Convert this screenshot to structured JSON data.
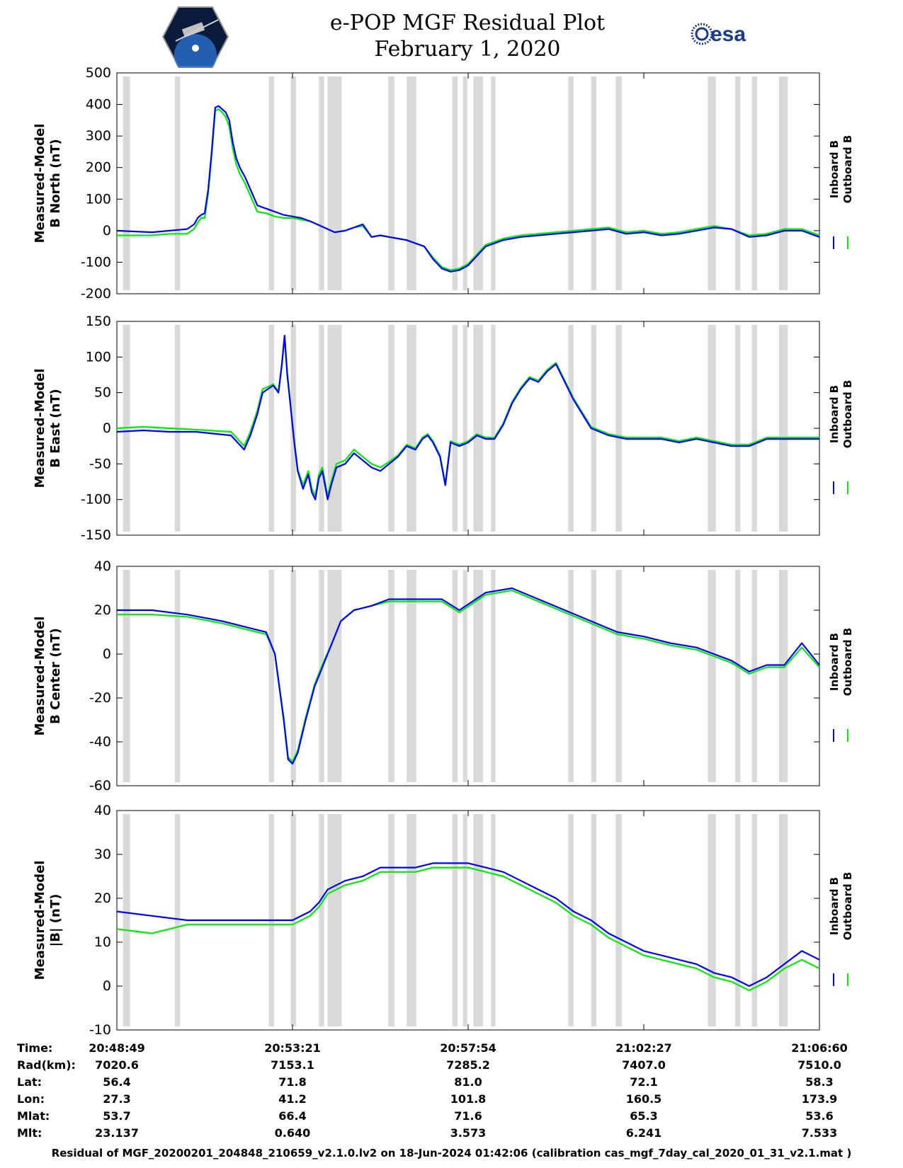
{
  "header": {
    "title": "e-POP MGF Residual Plot",
    "subtitle": "February 1, 2020",
    "right_logo_text": "esa"
  },
  "colors": {
    "inboard": "#0000ff",
    "outboard": "#00ee00",
    "gap": "#d9d9d9"
  },
  "chart_data": [
    {
      "type": "line",
      "ylabel": [
        "Measured-Model",
        "B North (nT)"
      ],
      "ylim": [
        -200,
        500
      ],
      "yticks": [
        -200,
        -100,
        0,
        100,
        200,
        300,
        400,
        500
      ],
      "legend_position": "right",
      "series": [
        {
          "name": "Inboard B",
          "color": "#0000ff",
          "x": [
            0,
            4,
            6,
            8,
            8.8,
            9.2,
            9.6,
            10,
            10.4,
            10.8,
            11.2,
            11.6,
            12,
            12.4,
            12.8,
            13.2,
            13.6,
            14,
            14.6,
            16,
            17,
            18,
            19,
            20,
            21,
            22,
            22.8,
            23.6,
            24.4,
            24.8,
            26,
            27,
            28,
            29,
            30,
            31,
            32,
            33,
            34,
            35,
            36,
            37,
            38,
            39,
            40,
            42,
            44,
            46,
            48,
            50,
            52,
            54,
            56,
            58,
            60,
            62,
            64,
            66,
            68,
            70,
            72,
            74,
            76,
            78,
            80
          ],
          "y": [
            0,
            -5,
            0,
            5,
            20,
            40,
            50,
            55,
            130,
            250,
            390,
            395,
            385,
            375,
            350,
            280,
            230,
            200,
            170,
            80,
            70,
            60,
            50,
            45,
            40,
            30,
            20,
            10,
            0,
            -5,
            0,
            10,
            20,
            -20,
            -15,
            -20,
            -25,
            -30,
            -40,
            -50,
            -90,
            -120,
            -130,
            -125,
            -110,
            -50,
            -30,
            -20,
            -15,
            -10,
            -5,
            0,
            5,
            -10,
            -5,
            -15,
            -10,
            0,
            10,
            5,
            -20,
            -15,
            0,
            0,
            -20
          ]
        },
        {
          "name": "Outboard B",
          "color": "#00ee00",
          "x": [
            0,
            4,
            6,
            8,
            8.8,
            9.2,
            9.6,
            10,
            10.4,
            10.8,
            11.2,
            11.6,
            12,
            12.4,
            12.8,
            13.2,
            13.6,
            14,
            14.6,
            16,
            17,
            18,
            19,
            20,
            21,
            22,
            22.8,
            23.6,
            24.4,
            24.8,
            26,
            27,
            28,
            29,
            30,
            31,
            32,
            33,
            34,
            35,
            36,
            37,
            38,
            39,
            40,
            42,
            44,
            46,
            48,
            50,
            52,
            54,
            56,
            58,
            60,
            62,
            64,
            66,
            68,
            70,
            72,
            74,
            76,
            78,
            80
          ],
          "y": [
            -15,
            -15,
            -10,
            -10,
            5,
            25,
            40,
            40,
            120,
            240,
            380,
            385,
            375,
            360,
            330,
            260,
            210,
            180,
            150,
            60,
            55,
            45,
            40,
            40,
            35,
            30,
            20,
            10,
            0,
            -5,
            0,
            10,
            15,
            -20,
            -15,
            -20,
            -25,
            -30,
            -40,
            -50,
            -85,
            -115,
            -125,
            -120,
            -105,
            -45,
            -25,
            -15,
            -10,
            -5,
            0,
            5,
            10,
            -5,
            0,
            -10,
            -5,
            5,
            15,
            5,
            -15,
            -10,
            5,
            5,
            -15
          ]
        }
      ]
    },
    {
      "type": "line",
      "ylabel": [
        "Measured-Model",
        "B East (nT)"
      ],
      "ylim": [
        -150,
        150
      ],
      "yticks": [
        -150,
        -100,
        -50,
        0,
        50,
        100,
        150
      ],
      "legend_position": "right",
      "series": [
        {
          "name": "Inboard B",
          "color": "#0000ff",
          "x": [
            0,
            3,
            6,
            9,
            13,
            14.5,
            15.2,
            16,
            16.6,
            17.2,
            17.8,
            18.4,
            18.8,
            19.1,
            19.4,
            19.7,
            20.2,
            20.6,
            21.2,
            21.8,
            22.2,
            22.6,
            23,
            23.4,
            24,
            24.4,
            25,
            26,
            27,
            28,
            29,
            30,
            31,
            32,
            33,
            34,
            34.8,
            35.4,
            36,
            36.8,
            37.4,
            38,
            39,
            40,
            41,
            42,
            43,
            44,
            45,
            46,
            47,
            48,
            49,
            50,
            52,
            54,
            56,
            58,
            60,
            62,
            64,
            66,
            68,
            70,
            72,
            74,
            76,
            78,
            80
          ],
          "y": [
            -5,
            -3,
            -5,
            -5,
            -10,
            -30,
            -10,
            20,
            50,
            55,
            60,
            50,
            90,
            130,
            75,
            40,
            -20,
            -60,
            -85,
            -65,
            -90,
            -100,
            -70,
            -60,
            -100,
            -80,
            -55,
            -50,
            -35,
            -45,
            -55,
            -60,
            -50,
            -40,
            -25,
            -30,
            -15,
            -10,
            -20,
            -40,
            -80,
            -20,
            -25,
            -20,
            -10,
            -15,
            -15,
            5,
            35,
            55,
            70,
            65,
            80,
            90,
            40,
            0,
            -10,
            -15,
            -15,
            -15,
            -20,
            -15,
            -20,
            -25,
            -25,
            -15,
            -15,
            -15,
            -15
          ]
        },
        {
          "name": "Outboard B",
          "color": "#00ee00",
          "x": [
            0,
            3,
            6,
            9,
            13,
            14.5,
            15.2,
            16,
            16.6,
            17.2,
            17.8,
            18.4,
            18.8,
            19.1,
            19.4,
            19.7,
            20.2,
            20.6,
            21.2,
            21.8,
            22.2,
            22.6,
            23,
            23.4,
            24,
            24.4,
            25,
            26,
            27,
            28,
            29,
            30,
            31,
            32,
            33,
            34,
            34.8,
            35.4,
            36,
            36.8,
            37.4,
            38,
            39,
            40,
            41,
            42,
            43,
            44,
            45,
            46,
            47,
            48,
            49,
            50,
            52,
            54,
            56,
            58,
            60,
            62,
            64,
            66,
            68,
            70,
            72,
            74,
            76,
            78,
            80
          ],
          "y": [
            0,
            2,
            0,
            -2,
            -5,
            -25,
            -5,
            25,
            55,
            58,
            62,
            52,
            92,
            130,
            78,
            42,
            -18,
            -58,
            -80,
            -60,
            -85,
            -95,
            -65,
            -55,
            -95,
            -75,
            -50,
            -45,
            -30,
            -40,
            -50,
            -55,
            -47,
            -38,
            -23,
            -28,
            -13,
            -8,
            -18,
            -38,
            -78,
            -18,
            -23,
            -18,
            -8,
            -13,
            -13,
            7,
            37,
            57,
            72,
            67,
            82,
            92,
            42,
            2,
            -8,
            -13,
            -13,
            -13,
            -18,
            -13,
            -18,
            -23,
            -23,
            -13,
            -13,
            -13,
            -13
          ]
        }
      ]
    },
    {
      "type": "line",
      "ylabel": [
        "Measured-Model",
        "B Center (nT)"
      ],
      "ylim": [
        -60,
        40
      ],
      "yticks": [
        -60,
        -40,
        -20,
        0,
        20,
        40
      ],
      "legend_position": "right",
      "series": [
        {
          "name": "Inboard B",
          "color": "#0000ff",
          "x": [
            0,
            4,
            8,
            12,
            15,
            17,
            18,
            19,
            19.5,
            20,
            20.6,
            21.5,
            22.5,
            23.5,
            24.5,
            25.5,
            27,
            29,
            31,
            33,
            35,
            37,
            39,
            42,
            45,
            48,
            51,
            54,
            57,
            60,
            63,
            66,
            68,
            70,
            72,
            74,
            76,
            78,
            80
          ],
          "y": [
            20,
            20,
            18,
            15,
            12,
            10,
            0,
            -30,
            -48,
            -50,
            -45,
            -30,
            -15,
            -5,
            5,
            15,
            20,
            22,
            25,
            25,
            25,
            25,
            20,
            28,
            30,
            25,
            20,
            15,
            10,
            8,
            5,
            3,
            0,
            -3,
            -8,
            -5,
            -5,
            5,
            -5
          ]
        },
        {
          "name": "Outboard B",
          "color": "#00ee00",
          "x": [
            0,
            4,
            8,
            12,
            15,
            17,
            18,
            19,
            19.5,
            20,
            20.6,
            21.5,
            22.5,
            23.5,
            24.5,
            25.5,
            27,
            29,
            31,
            33,
            35,
            37,
            39,
            42,
            45,
            48,
            51,
            54,
            57,
            60,
            63,
            66,
            68,
            70,
            72,
            74,
            76,
            78,
            80
          ],
          "y": [
            18,
            18,
            17,
            14,
            11,
            9,
            0,
            -29,
            -47,
            -49,
            -44,
            -29,
            -14,
            -4,
            5,
            15,
            20,
            22,
            24,
            24,
            24,
            24,
            19,
            27,
            29,
            24,
            19,
            14,
            9,
            7,
            4,
            2,
            -1,
            -4,
            -9,
            -6,
            -6,
            3,
            -6
          ]
        }
      ]
    },
    {
      "type": "line",
      "ylabel": [
        "Measured-Model",
        "|B| (nT)"
      ],
      "ylim": [
        -10,
        40
      ],
      "yticks": [
        -10,
        0,
        10,
        20,
        30,
        40
      ],
      "legend_position": "right",
      "series": [
        {
          "name": "Inboard B",
          "color": "#0000ff",
          "x": [
            0,
            4,
            8,
            12,
            16,
            18,
            20,
            22,
            23,
            24,
            26,
            28,
            30,
            32,
            34,
            36,
            38,
            40,
            42,
            44,
            46,
            48,
            50,
            52,
            54,
            56,
            58,
            60,
            62,
            64,
            66,
            68,
            70,
            72,
            74,
            76,
            78,
            80
          ],
          "y": [
            17,
            16,
            15,
            15,
            15,
            15,
            15,
            17,
            19,
            22,
            24,
            25,
            27,
            27,
            27,
            28,
            28,
            28,
            27,
            26,
            24,
            22,
            20,
            17,
            15,
            12,
            10,
            8,
            7,
            6,
            5,
            3,
            2,
            0,
            2,
            5,
            8,
            6
          ]
        },
        {
          "name": "Outboard B",
          "color": "#00ee00",
          "x": [
            0,
            4,
            8,
            12,
            16,
            18,
            20,
            22,
            23,
            24,
            26,
            28,
            30,
            32,
            34,
            36,
            38,
            40,
            42,
            44,
            46,
            48,
            50,
            52,
            54,
            56,
            58,
            60,
            62,
            64,
            66,
            68,
            70,
            72,
            74,
            76,
            78,
            80
          ],
          "y": [
            13,
            12,
            14,
            14,
            14,
            14,
            14,
            16,
            18,
            21,
            23,
            24,
            26,
            26,
            26,
            27,
            27,
            27,
            26,
            25,
            23,
            21,
            19,
            16,
            14,
            11,
            9,
            7,
            6,
            5,
            4,
            2,
            1,
            -1,
            1,
            4,
            6,
            4
          ]
        }
      ]
    }
  ],
  "shared_x": {
    "range": [
      0,
      80
    ],
    "tick_positions": [
      0,
      20,
      40,
      60,
      80
    ],
    "gap_intervals": [
      [
        0.7,
        1.5
      ],
      [
        6.6,
        7.2
      ],
      [
        17.3,
        17.9
      ],
      [
        19.8,
        20.4
      ],
      [
        23.0,
        23.6
      ],
      [
        24.0,
        25.6
      ],
      [
        30.9,
        31.6
      ],
      [
        33.0,
        34.1
      ],
      [
        38.2,
        38.8
      ],
      [
        39.4,
        39.9
      ],
      [
        40.6,
        41.7
      ],
      [
        42.6,
        43.1
      ],
      [
        51.4,
        52.0
      ],
      [
        54.0,
        54.6
      ],
      [
        56.8,
        57.5
      ],
      [
        67.3,
        68.2
      ],
      [
        70.4,
        71.0
      ],
      [
        72.3,
        72.9
      ],
      [
        75.4,
        76.4
      ]
    ]
  },
  "ephemeris": {
    "labels": [
      "Time:",
      "Rad(km):",
      "Lat:",
      "Lon:",
      "Mlat:",
      "Mlt:"
    ],
    "columns": [
      [
        "20:48:49",
        "7020.6",
        "56.4",
        "27.3",
        "53.7",
        "23.137"
      ],
      [
        "20:53:21",
        "7153.1",
        "71.8",
        "41.2",
        "66.4",
        "0.640"
      ],
      [
        "20:57:54",
        "7285.2",
        "81.0",
        "101.8",
        "71.6",
        "3.573"
      ],
      [
        "21:02:27",
        "7407.0",
        "72.1",
        "160.5",
        "65.3",
        "6.241"
      ],
      [
        "21:06:60",
        "7510.0",
        "58.3",
        "173.9",
        "53.6",
        "7.533"
      ]
    ]
  },
  "footer": {
    "text": "Residual of MGF_20200201_204848_210659_v2.1.0.lv2 on 18-Jun-2024 01:42:06 (calibration cas_mgf_7day_cal_2020_01_31_v2.1.mat )"
  }
}
